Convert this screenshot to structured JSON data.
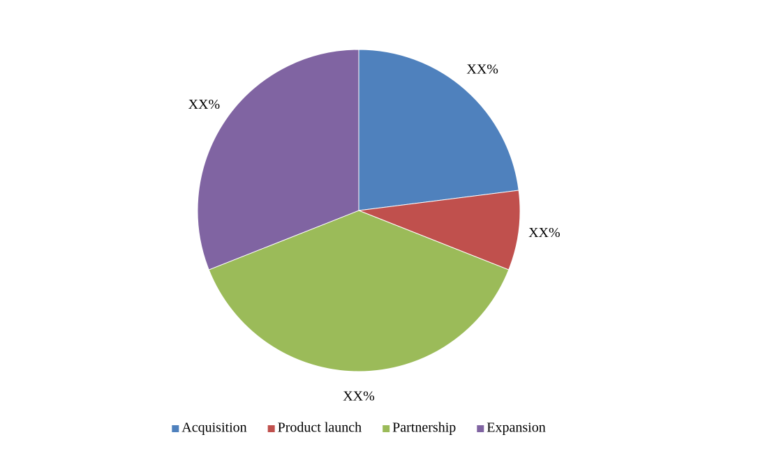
{
  "chart_data": {
    "type": "pie",
    "categories": [
      "Acquisition",
      "Product launch",
      "Partnership",
      "Expansion"
    ],
    "values": [
      23,
      8,
      38,
      31
    ],
    "value_labels": [
      "XX%",
      "XX%",
      "XX%",
      "XX%"
    ],
    "colors": [
      "#4f81bd",
      "#c0504d",
      "#9bbb59",
      "#8064a2"
    ],
    "legend": "bottom"
  }
}
